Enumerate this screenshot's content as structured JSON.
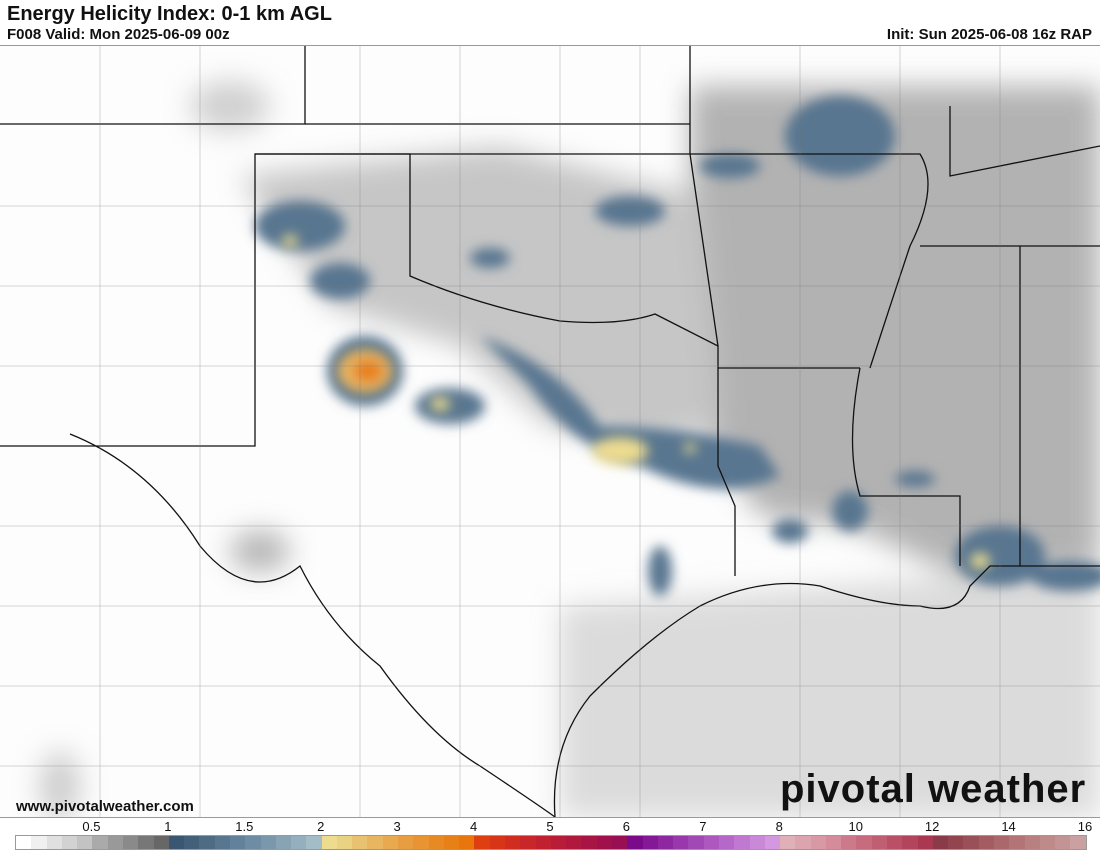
{
  "header": {
    "title": "Energy Helicity Index: 0-1 km AGL",
    "valid": "F008 Valid: Mon 2025-06-09 00z",
    "init": "Init: Sun 2025-06-08 16z RAP"
  },
  "footer": {
    "url": "www.pivotalweather.com",
    "brand": "pivotal weather"
  },
  "colorbar": {
    "ticks": [
      {
        "v": 0.5,
        "l": "0.5"
      },
      {
        "v": 1,
        "l": "1"
      },
      {
        "v": 1.5,
        "l": "1.5"
      },
      {
        "v": 2,
        "l": "2"
      },
      {
        "v": 3,
        "l": "3"
      },
      {
        "v": 4,
        "l": "4"
      },
      {
        "v": 5,
        "l": "5"
      },
      {
        "v": 6,
        "l": "6"
      },
      {
        "v": 7,
        "l": "7"
      },
      {
        "v": 8,
        "l": "8"
      },
      {
        "v": 10,
        "l": "10"
      },
      {
        "v": 12,
        "l": "12"
      },
      {
        "v": 14,
        "l": "14"
      },
      {
        "v": 16,
        "l": "16"
      }
    ],
    "colors": [
      "#ffffff",
      "#f0f0f0",
      "#e0e0e0",
      "#d2d2d2",
      "#c3c3c3",
      "#aaaaaa",
      "#999999",
      "#8a8a8a",
      "#777777",
      "#676767",
      "#3a5670",
      "#43607a",
      "#4e6b84",
      "#587690",
      "#62819a",
      "#6e8ca3",
      "#7a97ab",
      "#87a3b4",
      "#94afbe",
      "#a3bcc8",
      "#eddc90",
      "#e9d282",
      "#e8c270",
      "#e8b660",
      "#e8aa50",
      "#e89e40",
      "#e89432",
      "#e88a24",
      "#e88018",
      "#e8760c",
      "#de3f10",
      "#d83418",
      "#d02c20",
      "#c82628",
      "#c02030",
      "#b81c38",
      "#b0183e",
      "#a81444",
      "#a0104a",
      "#981052",
      "#7a0a8a",
      "#841896",
      "#8e28a0",
      "#9838aa",
      "#a248b4",
      "#ac58be",
      "#b668c8",
      "#c078d0",
      "#ca88d8",
      "#d498e0",
      "#e0b0b8",
      "#dca4ae",
      "#d898a4",
      "#d48c9a",
      "#cc7a8a",
      "#c66c7e",
      "#c05e72",
      "#ba5068",
      "#b2445c",
      "#aa3850",
      "#8a3a48",
      "#92444f",
      "#9a5058",
      "#a25c62",
      "#aa686c",
      "#b27476",
      "#b88080",
      "#be8a8a",
      "#c49494",
      "#caa0a0"
    ]
  },
  "legend_colors": {
    "low": "#cccccc",
    "mid": "#587690",
    "high": "#e8a040"
  }
}
